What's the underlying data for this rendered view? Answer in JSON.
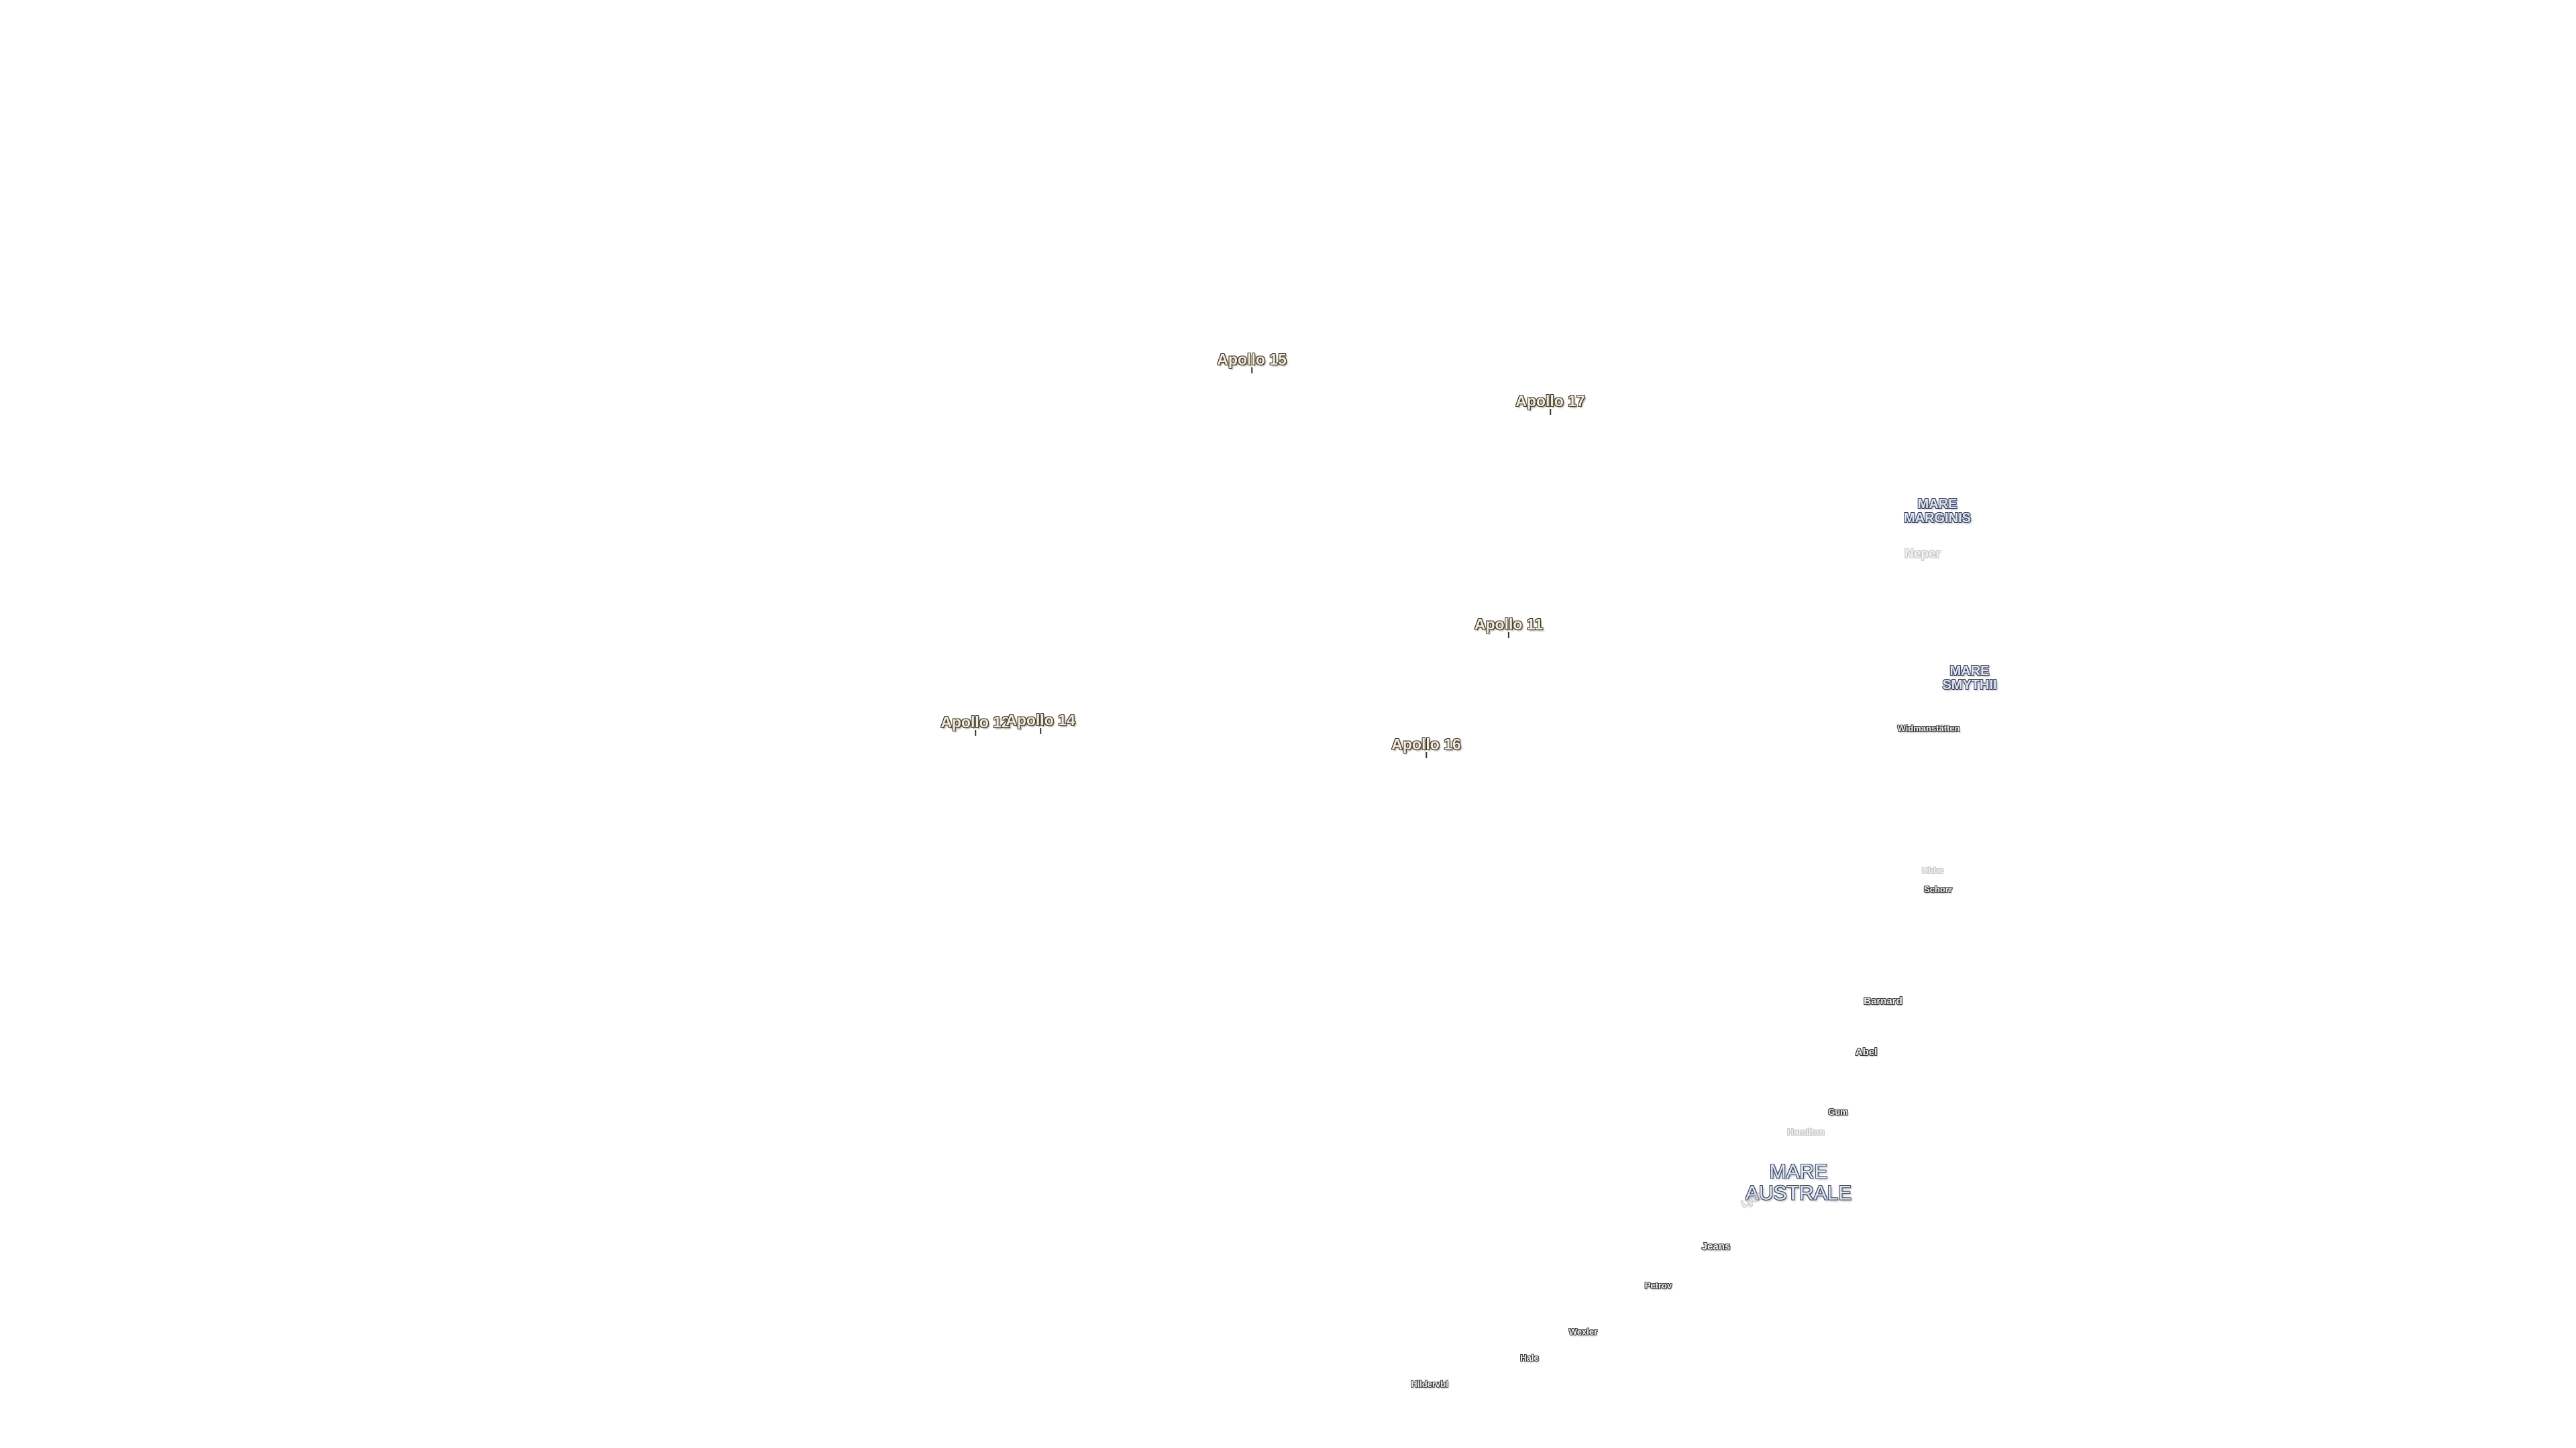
{
  "apollo_sites": [
    {
      "id": "a15",
      "label": "Apollo 15"
    },
    {
      "id": "a17",
      "label": "Apollo 17"
    },
    {
      "id": "a11",
      "label": "Apollo 11"
    },
    {
      "id": "a12",
      "label": "Apollo 12"
    },
    {
      "id": "a14",
      "label": "Apollo 14"
    },
    {
      "id": "a16",
      "label": "Apollo 16"
    }
  ],
  "maria": [
    {
      "id": "marginis",
      "line1": "MARE",
      "line2": "MARGINIS"
    },
    {
      "id": "smythii",
      "line1": "MARE",
      "line2": "SMYTHII"
    },
    {
      "id": "australe",
      "line1": "MARE",
      "line2": "AUSTRALE"
    }
  ],
  "craters": [
    {
      "id": "neper",
      "label": "Neper"
    },
    {
      "id": "widmanstatten",
      "label": "Widmanstätten"
    },
    {
      "id": "ubbe",
      "label": "Ubbe"
    },
    {
      "id": "schorr",
      "label": "Schorr"
    },
    {
      "id": "barnard",
      "label": "Barnard"
    },
    {
      "id": "abel",
      "label": "Abel"
    },
    {
      "id": "gum",
      "label": "Gum"
    },
    {
      "id": "hamilton",
      "label": "Hamilton"
    },
    {
      "id": "lyot",
      "label": "Lyot"
    },
    {
      "id": "jeans",
      "label": "Jeans"
    },
    {
      "id": "petrov",
      "label": "Petrov"
    },
    {
      "id": "wexler",
      "label": "Wexler"
    },
    {
      "id": "hale",
      "label": "Hale"
    },
    {
      "id": "hildervbl",
      "label": "Hildervbl"
    }
  ]
}
